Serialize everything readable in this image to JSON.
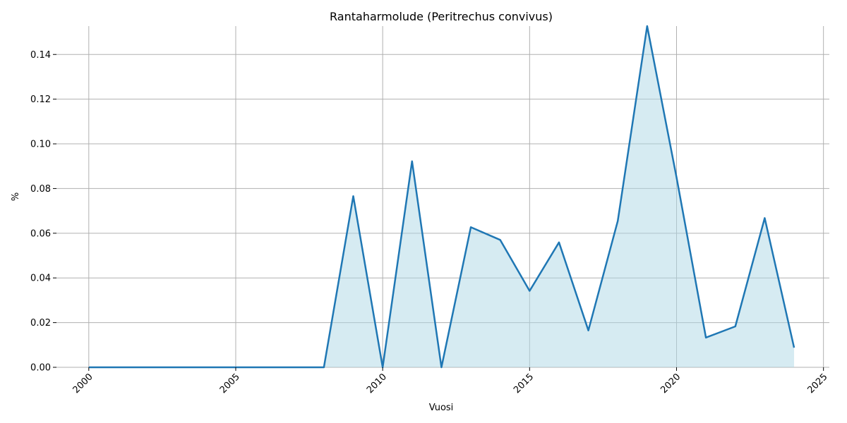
{
  "chart_data": {
    "type": "area",
    "title": "Rantaharmolude (Peritrechus convivus)",
    "xlabel": "Vuosi",
    "ylabel": "%",
    "xlim": [
      1998.9,
      2025.2
    ],
    "ylim": [
      0,
      0.1527
    ],
    "x_ticks": [
      2000,
      2005,
      2010,
      2015,
      2020,
      2025
    ],
    "x_tick_labels": [
      "2000",
      "2005",
      "2010",
      "2015",
      "2020",
      "2025"
    ],
    "x_tick_rotation": 45,
    "y_ticks": [
      0,
      0.02,
      0.04,
      0.06,
      0.08,
      0.1,
      0.12,
      0.14
    ],
    "y_tick_labels": [
      "0.00",
      "0.02",
      "0.04",
      "0.06",
      "0.08",
      "0.10",
      "0.12",
      "0.14"
    ],
    "grid": true,
    "line_color": "#1f77b4",
    "fill_color": "#add8e6",
    "x": [
      2000,
      2001,
      2002,
      2003,
      2004,
      2005,
      2006,
      2007,
      2008,
      2009,
      2010,
      2011,
      2012,
      2013,
      2014,
      2015,
      2016,
      2017,
      2018,
      2019,
      2020,
      2021,
      2022,
      2023,
      2024
    ],
    "values": [
      0,
      0,
      0,
      0,
      0,
      0,
      0,
      0,
      0,
      0.0766,
      0,
      0.0922,
      0,
      0.0627,
      0.057,
      0.0342,
      0.0559,
      0.0165,
      0.0655,
      0.1527,
      0.085,
      0.0133,
      0.0183,
      0.0668,
      0.0088
    ]
  }
}
